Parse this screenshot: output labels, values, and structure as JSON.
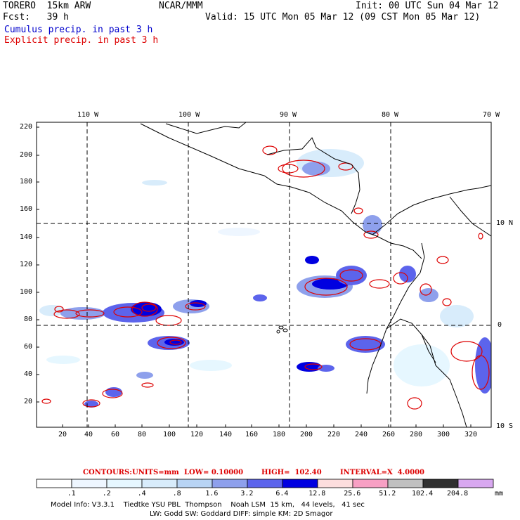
{
  "header": {
    "model": "TORERO  15km ARW",
    "org": "NCAR/MMM",
    "init": "Init: 00 UTC Sun 04 Mar 12",
    "fcst": "Fcst:   39 h",
    "valid": "Valid: 15 UTC Mon 05 Mar 12 (09 CST Mon 05 Mar 12)",
    "legend_cumulus": "Cumulus precip. in past 3 h",
    "legend_explicit": "Explicit precip. in past 3 h"
  },
  "colors": {
    "cumulus": "#0000cc",
    "explicit": "#dd0000"
  },
  "map": {
    "lon_labels": [
      "110 W",
      "100 W",
      "90 W",
      "80 W",
      "70 W"
    ],
    "lat_labels": [
      "10 N",
      "0",
      "10 S"
    ],
    "y_ticks": [
      "220",
      "200",
      "180",
      "160",
      "140",
      "120",
      "100",
      "80",
      "60",
      "40",
      "20"
    ],
    "x_ticks": [
      "20",
      "40",
      "60",
      "80",
      "100",
      "120",
      "140",
      "160",
      "180",
      "200",
      "220",
      "240",
      "260",
      "280",
      "300",
      "320"
    ]
  },
  "contours": {
    "label": "CONTOURS:",
    "units": "UNITS=mm",
    "low": "LOW= 0.10000",
    "high": "HIGH=  102.40",
    "interval": "INTERVAL=X  4.0000"
  },
  "colorbar": {
    "thresholds": [
      ".1",
      ".2",
      ".4",
      ".8",
      "1.6",
      "3.2",
      "6.4",
      "12.8",
      "25.6",
      "51.2",
      "102.4",
      "204.8"
    ],
    "unit": "mm",
    "colors": [
      "#ffffff",
      "#eef6ff",
      "#e6f7ff",
      "#d8ecfb",
      "#b8d4f4",
      "#8ea0ec",
      "#5c64ec",
      "#0000e0",
      "#fddede",
      "#f8a0c4",
      "#c0c0c0",
      "#303030",
      "#d8a8f0"
    ]
  },
  "footer": {
    "line1": "Model Info: V3.3.1    Tiedtke YSU PBL  Thompson    Noah LSM  15 km,   44 levels,   41 sec",
    "line2": "LW: Godd SW: Goddard DIFF: simple KM: 2D Smagor"
  }
}
